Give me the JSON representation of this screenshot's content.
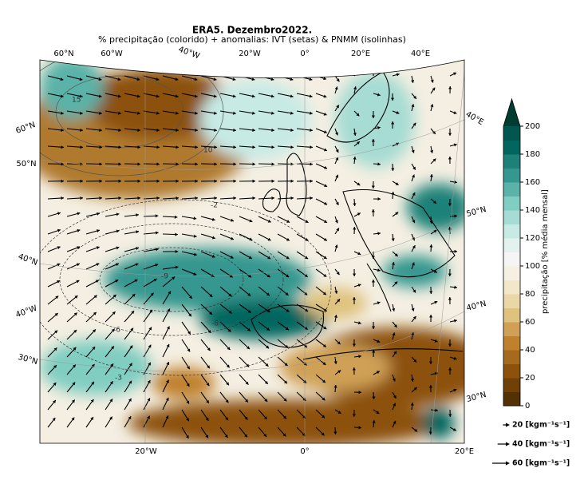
{
  "title": "ERA5. Dezembro2022.",
  "subtitle": "% precipitação (colorido) + anomalias: IVT (setas) & PNMM (isolinhas)",
  "graticule_labels": {
    "top": [
      "60°N",
      "60°W",
      "40°W",
      "20°W",
      "0°",
      "20°E",
      "40°E"
    ],
    "left": [
      "60°N",
      "50°N",
      "40°N",
      "40°W",
      "30°N"
    ],
    "right": [
      "40°E",
      "50°N",
      "40°N",
      "30°N"
    ],
    "bottom": [
      "20°W",
      "0°",
      "20°E"
    ]
  },
  "isoline_labels": [
    "15",
    "10",
    "-2",
    "-9",
    "-6",
    "-3",
    "-8"
  ],
  "colorbar": {
    "label": "precipitação [% média mensal]",
    "lim": [
      0,
      200
    ],
    "ticks": [
      0,
      20,
      40,
      60,
      80,
      100,
      120,
      140,
      160,
      180,
      200
    ],
    "colors": [
      "#543005",
      "#6f4008",
      "#8c510a",
      "#a66a1e",
      "#bf812d",
      "#cfa055",
      "#dfc27d",
      "#e9d7a6",
      "#f2e7c9",
      "#f6f0e2",
      "#f5f5f5",
      "#e4f2ef",
      "#c7eae5",
      "#a6dcd3",
      "#80cdc1",
      "#5ab2a8",
      "#35978f",
      "#1d8178",
      "#01665e",
      "#01574f"
    ],
    "extend_color": "#003c30"
  },
  "legend": [
    {
      "label": "20 [kgm⁻¹s⁻¹]",
      "value": 20
    },
    {
      "label": "40 [kgm⁻¹s⁻¹]",
      "value": 40
    },
    {
      "label": "60 [kgm⁻¹s⁻¹]",
      "value": 60
    }
  ]
}
